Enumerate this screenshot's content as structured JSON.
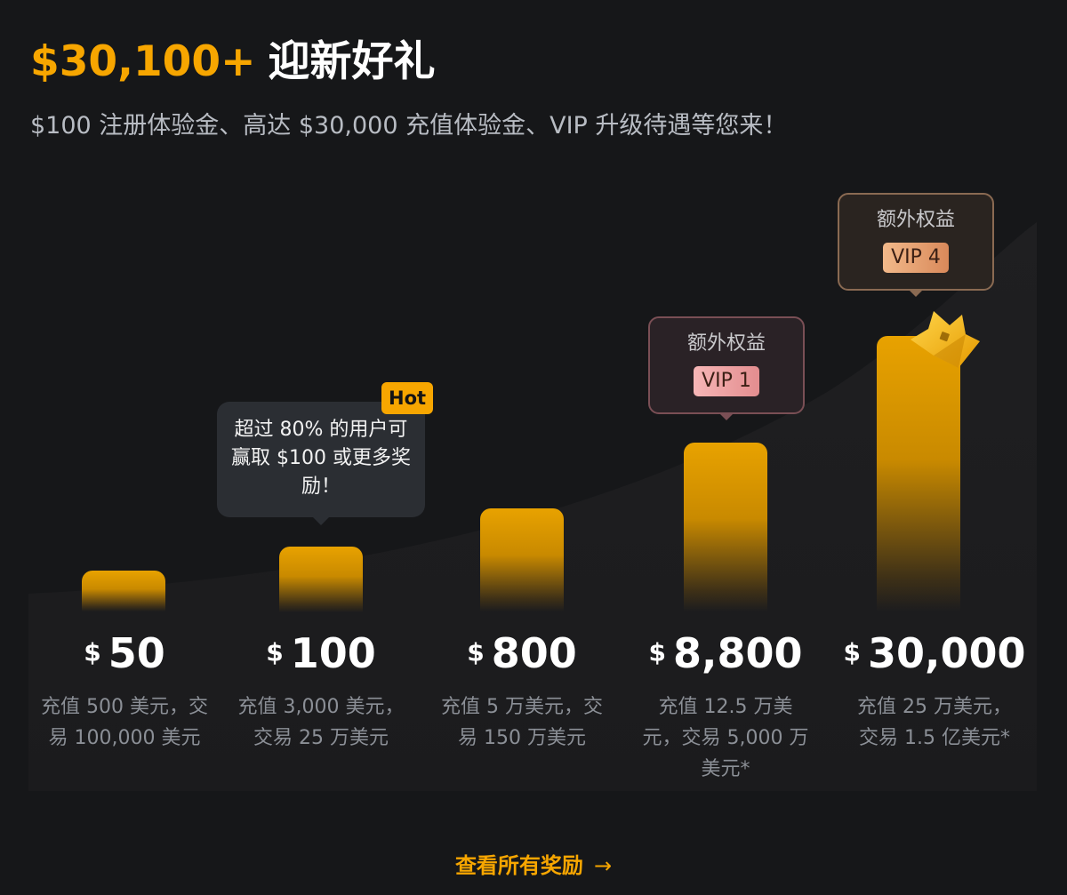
{
  "header": {
    "headline_amount": "$30,100+",
    "headline_text": "迎新好礼",
    "subtitle": "$100 注册体验金、高达 $30,000 充值体验金、VIP 升级待遇等您来！"
  },
  "colors": {
    "accent": "#f7a600",
    "background": "#161719",
    "muted_text": "#8b8f96",
    "subtitle_text": "#b8bcc3",
    "vip1_badge": "#f6b6b6",
    "vip4_badge": "#f2b98a"
  },
  "tiers": [
    {
      "currency": "$",
      "amount": "50",
      "desc": "充值 500 美元，交易 100,000 美元"
    },
    {
      "currency": "$",
      "amount": "100",
      "desc": "充值 3,000 美元，交易 25 万美元"
    },
    {
      "currency": "$",
      "amount": "800",
      "desc": "充值 5 万美元，交易 150 万美元"
    },
    {
      "currency": "$",
      "amount": "8,800",
      "desc": "充值 12.5 万美元，交易 5,000 万美元*"
    },
    {
      "currency": "$",
      "amount": "30,000",
      "desc": "充值 25 万美元，交易 1.5 亿美元*"
    }
  ],
  "hot_tooltip": {
    "badge": "Hot",
    "text": "超过 80% 的用户可赢取 $100 或更多奖励！"
  },
  "vip_cards": [
    {
      "label": "额外权益",
      "badge": "VIP 1"
    },
    {
      "label": "额外权益",
      "badge": "VIP 4"
    }
  ],
  "icons": {
    "crown": "crown-icon",
    "cta_arrow": "arrow-right-icon"
  },
  "cta": {
    "label": "查看所有奖励",
    "arrow": "→"
  }
}
